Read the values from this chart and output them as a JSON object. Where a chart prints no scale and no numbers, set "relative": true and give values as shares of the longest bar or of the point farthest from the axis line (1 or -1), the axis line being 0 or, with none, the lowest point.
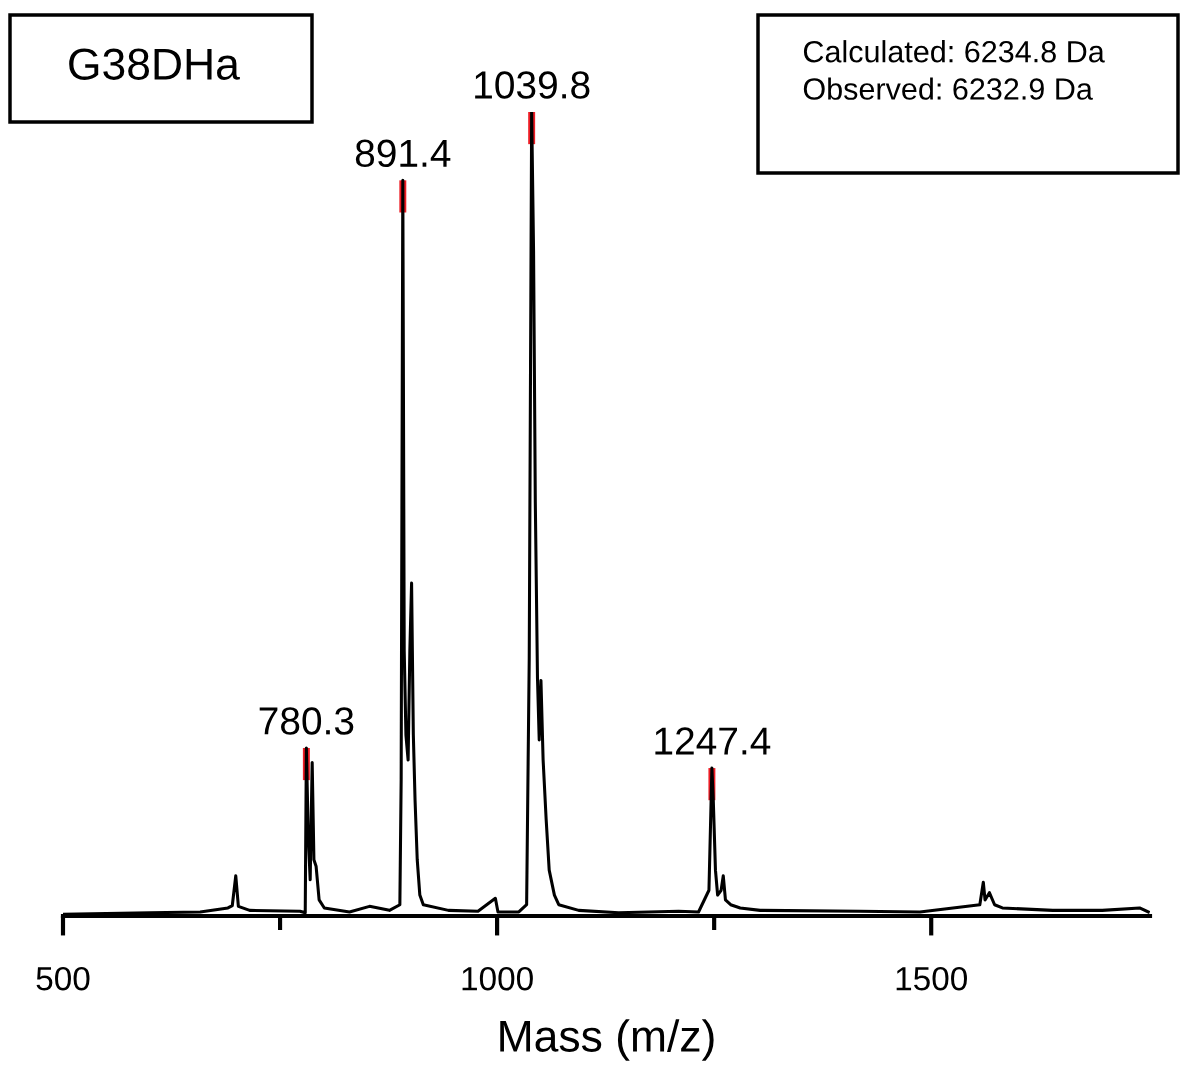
{
  "chart_data": {
    "type": "line",
    "relative": true,
    "xlabel": "Mass (m/z)",
    "xlim": [
      500,
      1752
    ],
    "xticks": [
      500,
      {
        "value": 750,
        "label": null
      },
      1000,
      {
        "value": 1250,
        "label": null
      },
      1500
    ],
    "grid": false,
    "legend": false,
    "marker": "none",
    "line_style": "solid",
    "series": [
      {
        "color": "#000000",
        "x": [
          500,
          600,
          658,
          690,
          695,
          699,
          702,
          715,
          773,
          779,
          780.3,
          782.5,
          784.7,
          787,
          789,
          791.5,
          795,
          801,
          830,
          853,
          876,
          888,
          889.5,
          891.4,
          893,
          895,
          897.5,
          899.5,
          901.5,
          903.5,
          905.5,
          908,
          911,
          915,
          944,
          978,
          998,
          1001,
          1025,
          1034,
          1037,
          1039.8,
          1042,
          1044,
          1046.5,
          1048.5,
          1050.5,
          1053,
          1056.5,
          1060,
          1066,
          1071,
          1094,
          1140,
          1209,
          1232,
          1244,
          1247.4,
          1249,
          1251.5,
          1254,
          1258,
          1260.5,
          1263,
          1269,
          1280,
          1303,
          1418,
          1487,
          1556,
          1560,
          1562,
          1567,
          1573,
          1582,
          1640,
          1697,
          1740,
          1750
        ],
        "values": [
          0.002,
          0.004,
          0.005,
          0.01,
          0.013,
          0.05,
          0.012,
          0.007,
          0.006,
          0.004,
          0.209,
          0.1,
          0.045,
          0.191,
          0.07,
          0.062,
          0.02,
          0.01,
          0.005,
          0.012,
          0.007,
          0.014,
          0.17,
          0.915,
          0.33,
          0.225,
          0.194,
          0.33,
          0.414,
          0.226,
          0.144,
          0.07,
          0.026,
          0.014,
          0.007,
          0.006,
          0.022,
          0.005,
          0.005,
          0.014,
          0.32,
          1.0,
          0.826,
          0.515,
          0.296,
          0.219,
          0.293,
          0.194,
          0.12,
          0.057,
          0.026,
          0.014,
          0.007,
          0.004,
          0.006,
          0.005,
          0.032,
          0.184,
          0.144,
          0.057,
          0.026,
          0.032,
          0.05,
          0.02,
          0.014,
          0.01,
          0.007,
          0.006,
          0.005,
          0.014,
          0.042,
          0.02,
          0.029,
          0.014,
          0.01,
          0.007,
          0.007,
          0.01,
          0.005
        ]
      }
    ],
    "annotations": [
      "G38DHa",
      "Calculated: 6234.8 Da\nObserved: 6232.9 Da",
      {
        "text": "780.3",
        "x": 780.3,
        "y": 0.209
      },
      {
        "text": "891.4",
        "x": 891.4,
        "y": 0.915
      },
      {
        "text": "1039.8",
        "x": 1039.8,
        "y": 1.0
      },
      {
        "text": "1247.4",
        "x": 1247.4,
        "y": 0.184
      }
    ]
  }
}
